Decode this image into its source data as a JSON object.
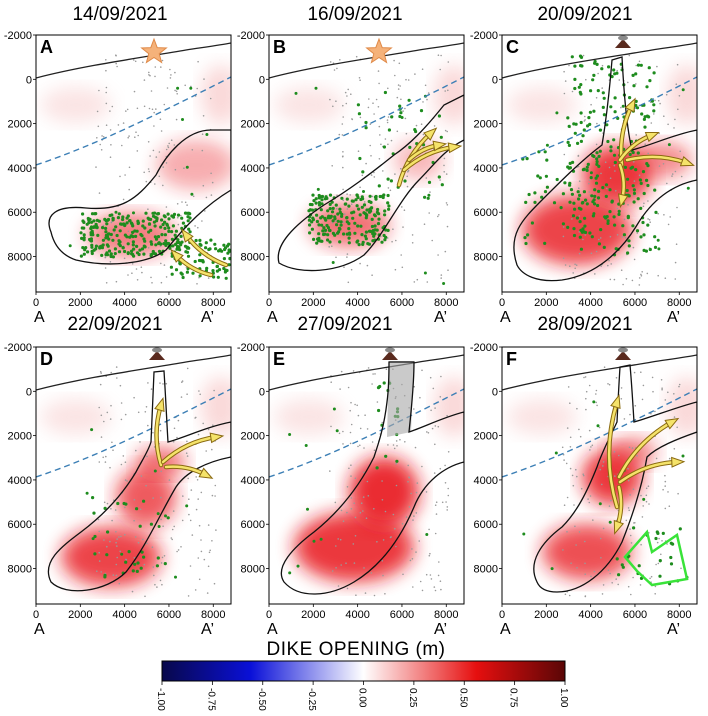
{
  "figure": {
    "colorbar_title": "DIKE OPENING (m)",
    "colorbar_ticks": [
      "-1.00",
      "-0.75",
      "-0.50",
      "-0.25",
      "0.00",
      "0.25",
      "0.50",
      "0.75",
      "1.00"
    ],
    "section_start": "A",
    "section_end": "A’"
  },
  "chart_data": [
    {
      "type": "heatmap",
      "panel": "A",
      "date": "14/09/2021",
      "xlim": [
        0,
        8800
      ],
      "ylim": [
        -2000,
        9600
      ],
      "x_ticks": [
        "0",
        "2000",
        "4000",
        "6000",
        "8000"
      ],
      "y_ticks": [
        "-2000",
        "0",
        "2000",
        "4000",
        "6000",
        "8000"
      ],
      "markers": [
        "star",
        "yellow flow arrows"
      ]
    },
    {
      "type": "heatmap",
      "panel": "B",
      "date": "16/09/2021",
      "xlim": [
        0,
        8800
      ],
      "ylim": [
        -2000,
        9600
      ],
      "x_ticks": [
        "0",
        "2000",
        "4000",
        "6000",
        "8000"
      ],
      "y_ticks": [
        "-2000",
        "0",
        "2000",
        "4000",
        "6000",
        "8000"
      ],
      "markers": [
        "star",
        "yellow flow arrows"
      ]
    },
    {
      "type": "heatmap",
      "panel": "C",
      "date": "20/09/2021",
      "xlim": [
        0,
        8800
      ],
      "ylim": [
        -2000,
        9600
      ],
      "x_ticks": [
        "0",
        "2000",
        "4000",
        "6000",
        "8000"
      ],
      "y_ticks": [
        "-2000",
        "0",
        "2000",
        "4000",
        "6000",
        "8000"
      ],
      "markers": [
        "volcano",
        "yellow flow arrows"
      ]
    },
    {
      "type": "heatmap",
      "panel": "D",
      "date": "22/09/2021",
      "xlim": [
        0,
        8800
      ],
      "ylim": [
        -2000,
        9600
      ],
      "x_ticks": [
        "0",
        "2000",
        "4000",
        "6000",
        "8000"
      ],
      "y_ticks": [
        "-2000",
        "0",
        "2000",
        "4000",
        "6000",
        "8000"
      ],
      "markers": [
        "volcano",
        "yellow flow arrows"
      ]
    },
    {
      "type": "heatmap",
      "panel": "E",
      "date": "27/09/2021",
      "xlim": [
        0,
        8800
      ],
      "ylim": [
        -2000,
        9600
      ],
      "x_ticks": [
        "0",
        "2000",
        "4000",
        "6000",
        "8000"
      ],
      "y_ticks": [
        "-2000",
        "0",
        "2000",
        "4000",
        "6000",
        "8000"
      ],
      "markers": [
        "volcano"
      ]
    },
    {
      "type": "heatmap",
      "panel": "F",
      "date": "28/09/2021",
      "xlim": [
        0,
        8800
      ],
      "ylim": [
        -2000,
        9600
      ],
      "x_ticks": [
        "0",
        "2000",
        "4000",
        "6000",
        "8000"
      ],
      "y_ticks": [
        "-2000",
        "0",
        "2000",
        "4000",
        "6000",
        "8000"
      ],
      "markers": [
        "volcano",
        "yellow flow arrows",
        "green arrow"
      ]
    }
  ]
}
